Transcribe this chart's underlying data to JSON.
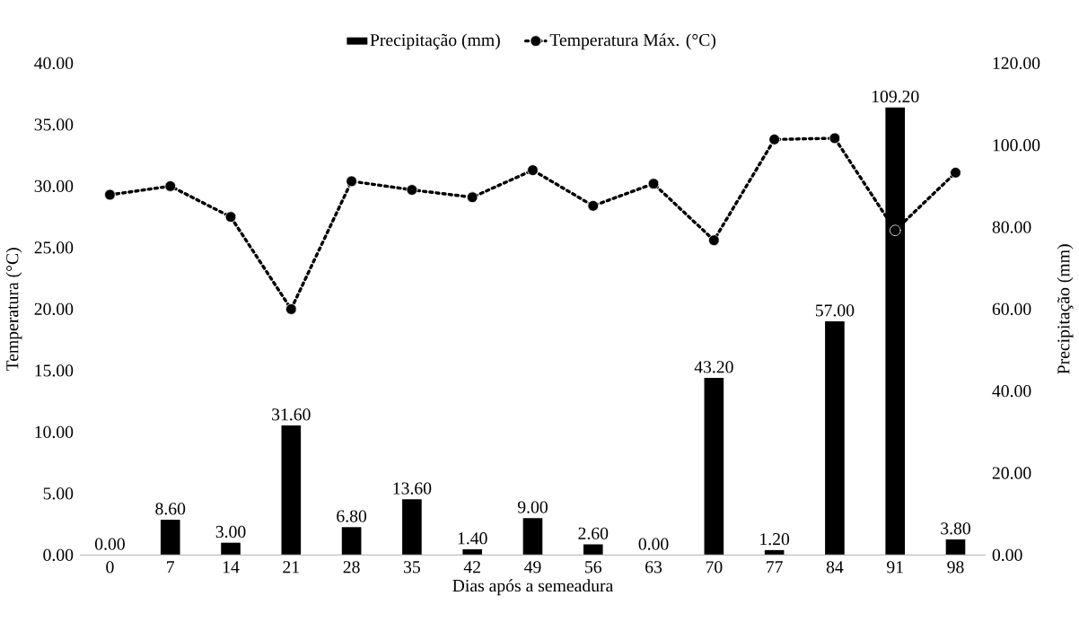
{
  "chart_data": {
    "type": "bar",
    "xlabel": "Dias após a semeadura",
    "ylabel": "Temperatura (°C)",
    "y2label": "Precipitação (mm)",
    "categories": [
      "0",
      "7",
      "14",
      "21",
      "28",
      "35",
      "42",
      "49",
      "56",
      "63",
      "70",
      "77",
      "84",
      "91",
      "98"
    ],
    "series": [
      {
        "name": "Precipitação (mm)",
        "axis": "y2",
        "color": "#000000",
        "values": [
          0,
          8.6,
          3,
          31.6,
          6.8,
          13.6,
          1.4,
          9,
          2.6,
          0,
          43.2,
          1.2,
          57,
          109.2,
          3.8
        ],
        "value_labels": [
          "0.00",
          "8.60",
          "3.00",
          "31.60",
          "6.80",
          "13.60",
          "1.40",
          "9.00",
          "2.60",
          "0.00",
          "43.20",
          "1.20",
          "57.00",
          "109.20",
          "3.80"
        ]
      },
      {
        "name": "Temperatura Máx. (°C)",
        "type": "line",
        "color": "#000000",
        "marker": "circle",
        "line_style": "dotted",
        "values": [
          29.3,
          30.0,
          27.5,
          20.0,
          30.4,
          29.7,
          29.1,
          31.3,
          28.4,
          30.2,
          25.6,
          33.8,
          33.9,
          26.4,
          31.1
        ]
      }
    ],
    "ylim": [
      0,
      40
    ],
    "yticks": [
      {
        "value": 0,
        "label": "0.00"
      },
      {
        "value": 5,
        "label": "5.00"
      },
      {
        "value": 10,
        "label": "10.00"
      },
      {
        "value": 15,
        "label": "15.00"
      },
      {
        "value": 20,
        "label": "20.00"
      },
      {
        "value": 25,
        "label": "25.00"
      },
      {
        "value": 30,
        "label": "30.00"
      },
      {
        "value": 35,
        "label": "35.00"
      },
      {
        "value": 40,
        "label": "40.00"
      }
    ],
    "y2lim": [
      0,
      120
    ],
    "y2ticks": [
      {
        "value": 0,
        "label": "0.00"
      },
      {
        "value": 20,
        "label": "20.00"
      },
      {
        "value": 40,
        "label": "40.00"
      },
      {
        "value": 60,
        "label": "60.00"
      },
      {
        "value": 80,
        "label": "80.00"
      },
      {
        "value": 100,
        "label": "100.00"
      },
      {
        "value": 120,
        "label": "120.00"
      }
    ],
    "grid": false,
    "legend": "top"
  }
}
